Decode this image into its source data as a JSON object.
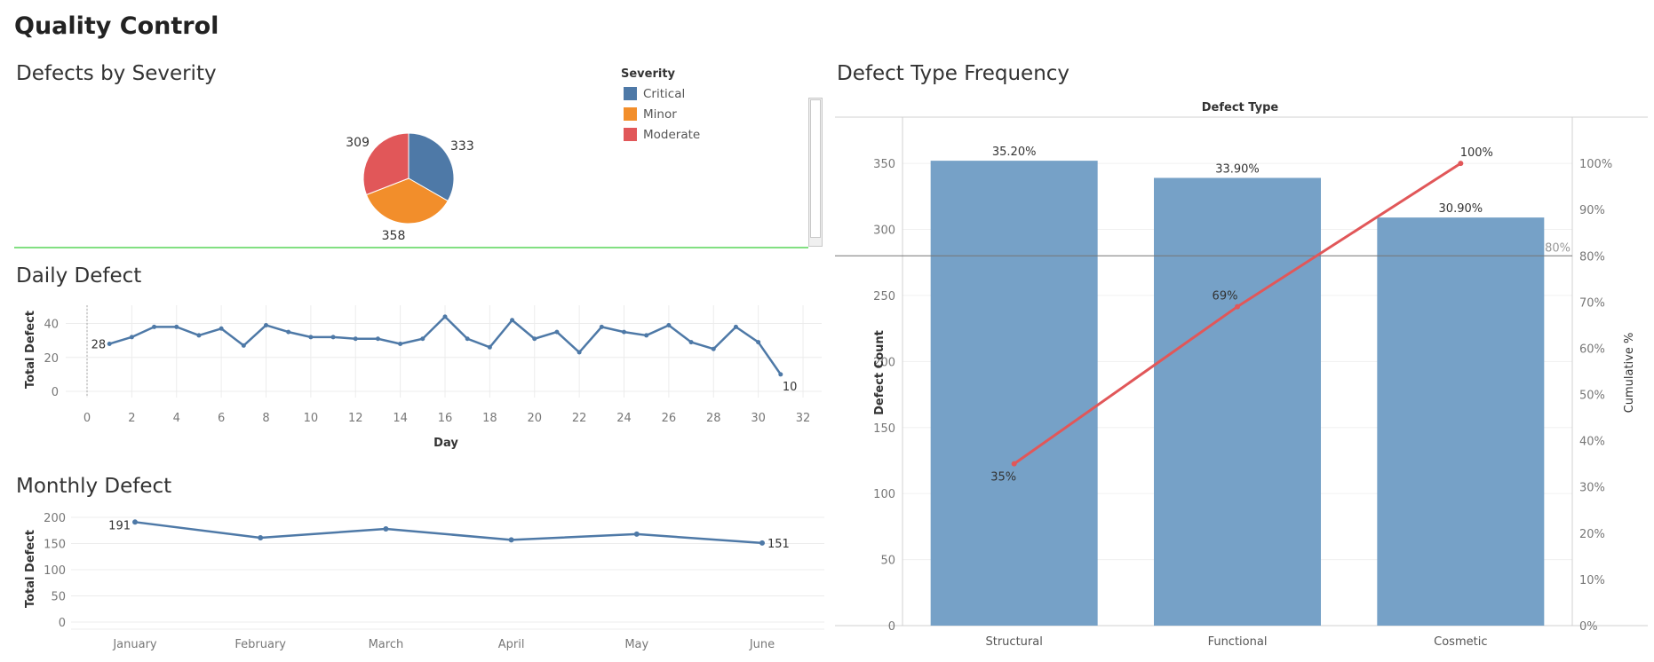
{
  "dashboard": {
    "title": "Quality Control"
  },
  "colors": {
    "critical": "#4e79a7",
    "minor": "#f28e2b",
    "moderate": "#e15759",
    "line": "#4e79a7",
    "bar": "#76a1c7",
    "pareto": "#e15759",
    "selection_border": "#59d659"
  },
  "severity": {
    "title": "Defects by Severity",
    "legend_title": "Severity",
    "legend": [
      {
        "label": "Critical",
        "color": "#4e79a7"
      },
      {
        "label": "Minor",
        "color": "#f28e2b"
      },
      {
        "label": "Moderate",
        "color": "#e15759"
      }
    ],
    "labels": {
      "critical": "333",
      "minor": "358",
      "moderate": "309"
    }
  },
  "daily": {
    "title": "Daily Defect",
    "ylabel": "Total Defect",
    "xlabel": "Day"
  },
  "monthly": {
    "title": "Monthly Defect",
    "ylabel": "Total Defect"
  },
  "pareto": {
    "title": "Defect Type Frequency",
    "header": "Defect Type",
    "ylabel": "Defect Count",
    "y2label": "Cumulative %",
    "ref_label": "80%"
  },
  "chart_data": [
    {
      "type": "pie",
      "title": "Defects by Severity",
      "categories": [
        "Critical",
        "Minor",
        "Moderate"
      ],
      "values": [
        333,
        358,
        309
      ],
      "legend": "top-right"
    },
    {
      "type": "line",
      "title": "Daily Defect",
      "xlabel": "Day",
      "ylabel": "Total Defect",
      "x": [
        1,
        2,
        3,
        4,
        5,
        6,
        7,
        8,
        9,
        10,
        11,
        12,
        13,
        14,
        15,
        16,
        17,
        18,
        19,
        20,
        21,
        22,
        23,
        24,
        25,
        26,
        27,
        28,
        29,
        30,
        31
      ],
      "values": [
        28,
        32,
        38,
        38,
        33,
        37,
        27,
        39,
        35,
        32,
        32,
        31,
        31,
        28,
        31,
        44,
        31,
        26,
        42,
        31,
        35,
        23,
        38,
        35,
        33,
        39,
        29,
        25,
        38,
        29,
        10
      ],
      "xlim": [
        0,
        32
      ],
      "ylim": [
        0,
        45
      ],
      "xticks": [
        0,
        2,
        4,
        6,
        8,
        10,
        12,
        14,
        16,
        18,
        20,
        22,
        24,
        26,
        28,
        30,
        32
      ],
      "yticks": [
        0,
        20,
        40
      ],
      "data_labels": {
        "first": "28",
        "last": "10"
      },
      "grid": true
    },
    {
      "type": "line",
      "title": "Monthly Defect",
      "ylabel": "Total Defect",
      "categories": [
        "January",
        "February",
        "March",
        "April",
        "May",
        "June"
      ],
      "values": [
        191,
        161,
        178,
        157,
        168,
        151
      ],
      "ylim": [
        0,
        200
      ],
      "yticks": [
        0,
        50,
        100,
        150,
        200
      ],
      "data_labels": {
        "first": "191",
        "last": "151"
      },
      "grid": true
    },
    {
      "type": "bar",
      "title": "Defect Type Frequency",
      "xlabel": "Defect Type",
      "ylabel": "Defect Count",
      "y2label": "Cumulative %",
      "categories": [
        "Structural",
        "Functional",
        "Cosmetic"
      ],
      "values": [
        352,
        339,
        309
      ],
      "bar_labels": [
        "35.20%",
        "33.90%",
        "30.90%"
      ],
      "ylim": [
        0,
        385
      ],
      "yticks": [
        0,
        50,
        100,
        150,
        200,
        250,
        300,
        350
      ],
      "cumulative_line": {
        "values": [
          35,
          69,
          100
        ],
        "labels": [
          "35%",
          "69%",
          "100%"
        ],
        "y2lim": [
          0,
          110
        ],
        "y2ticks": [
          0,
          10,
          20,
          30,
          40,
          50,
          60,
          70,
          80,
          90,
          100
        ],
        "y2tick_labels": [
          "0%",
          "10%",
          "20%",
          "30%",
          "40%",
          "50%",
          "60%",
          "70%",
          "80%",
          "90%",
          "100%"
        ]
      },
      "reference_line": {
        "value": 80,
        "label": "80%"
      },
      "grid": true
    }
  ]
}
